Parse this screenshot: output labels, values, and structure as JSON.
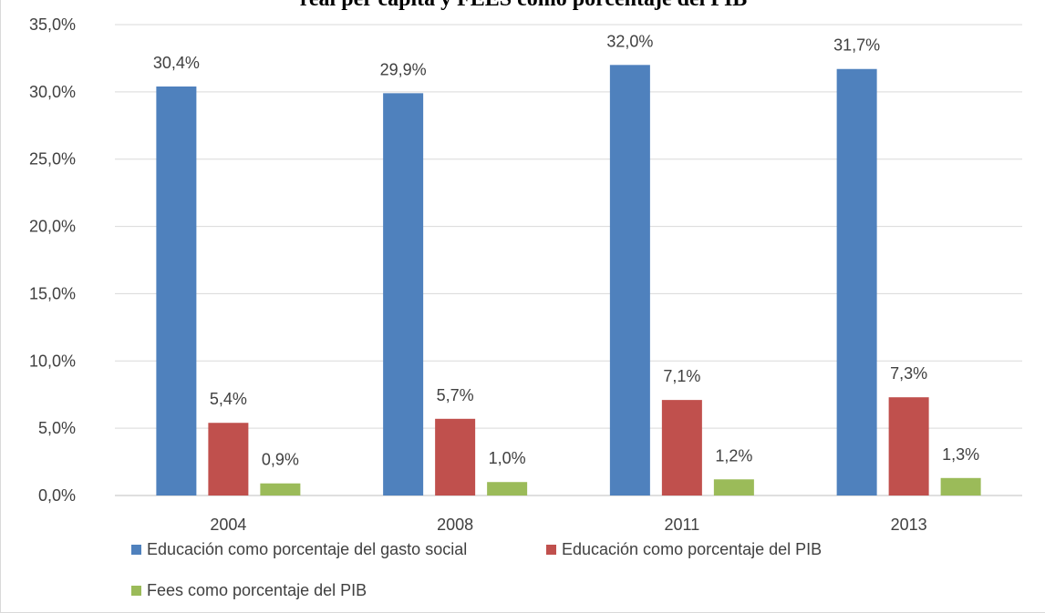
{
  "chart_data": {
    "type": "bar",
    "title": "real per capita y FEES como porcentaje del PIB",
    "categories": [
      "2004",
      "2008",
      "2011",
      "2013"
    ],
    "series": [
      {
        "name": "Educación como porcentaje del gasto social",
        "values": [
          30.4,
          29.9,
          32.0,
          31.7
        ],
        "labels": [
          "30,4%",
          "29,9%",
          "32,0%",
          "31,7%"
        ],
        "color": "#4f81bd"
      },
      {
        "name": "Educación como porcentaje del PIB",
        "values": [
          5.4,
          5.7,
          7.1,
          7.3
        ],
        "labels": [
          "5,4%",
          "5,7%",
          "7,1%",
          "7,3%"
        ],
        "color": "#c0504d"
      },
      {
        "name": "Fees como porcentaje del PIB",
        "values": [
          0.9,
          1.0,
          1.2,
          1.3
        ],
        "labels": [
          "0,9%",
          "1,0%",
          "1,2%",
          "1,3%"
        ],
        "color": "#9bbb59"
      }
    ],
    "ylim": [
      0,
      35
    ],
    "yticks": [
      "0,0%",
      "5,0%",
      "10,0%",
      "15,0%",
      "20,0%",
      "25,0%",
      "30,0%",
      "35,0%"
    ],
    "grid": true,
    "legend": "bottom",
    "xlabel": "",
    "ylabel": ""
  }
}
